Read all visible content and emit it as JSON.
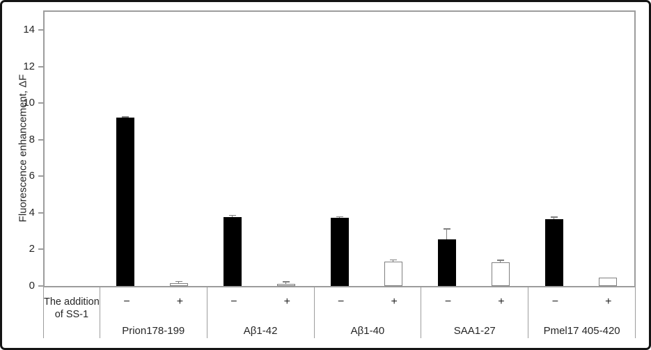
{
  "figure": {
    "background": "#ffffff",
    "border_color": "#141414"
  },
  "axis": {
    "line_color": "#9c9c9c",
    "error_bar_color": "#7f7f7f",
    "text_color": "#262626"
  },
  "table": {
    "header_line1": "The addition",
    "header_line2": "of SS-1"
  },
  "chart_data": {
    "type": "bar",
    "title": "",
    "ylabel": "Fluorescence enhancement, ΔF",
    "xlabel": "",
    "ylim": [
      0,
      15
    ],
    "yticks": [
      0,
      2,
      4,
      6,
      8,
      10,
      12,
      14
    ],
    "grid": false,
    "legend": "none",
    "categories": [
      "Prion178-199",
      "Aβ1-42",
      "Aβ1-40",
      "SAA1-27",
      "Pmel17 405-420"
    ],
    "condition_labels": [
      "−",
      "+"
    ],
    "series": [
      {
        "name": "−",
        "fill": "#000000",
        "values": [
          9.2,
          3.77,
          3.73,
          2.55,
          3.66
        ],
        "errors": [
          0.07,
          0.1,
          0.07,
          0.58,
          0.12
        ]
      },
      {
        "name": "+",
        "fill": "#ffffff",
        "values": [
          0.15,
          0.12,
          1.32,
          1.3,
          0.45
        ],
        "errors": [
          0.1,
          0.12,
          0.12,
          0.12,
          0
        ]
      }
    ]
  }
}
